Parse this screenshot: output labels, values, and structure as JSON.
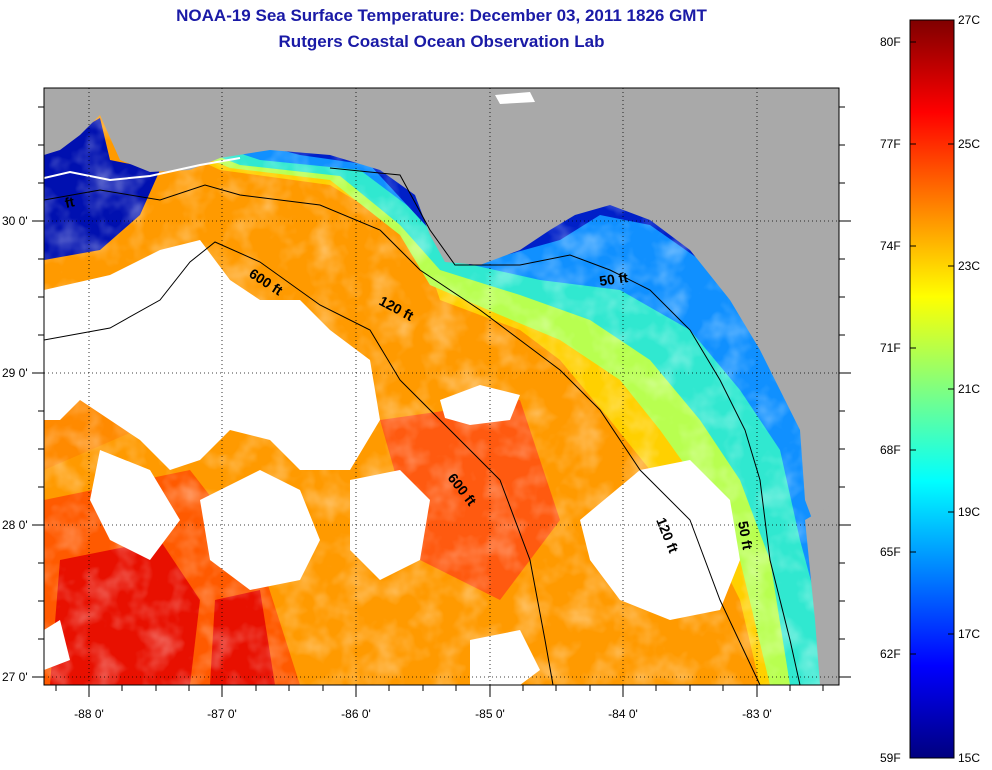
{
  "title": {
    "line1": "NOAA-19 Sea Surface Temperature:  December 03, 2011 1826 GMT",
    "line2": "Rutgers Coastal Ocean Observation Lab"
  },
  "colors": {
    "title": "#1a1aa6",
    "land": "#a9a9a9",
    "cloud": "#ffffff",
    "contour": "#000000"
  },
  "map": {
    "x_ticks": [
      "-88 0'",
      "-87 0'",
      "-86 0'",
      "-85 0'",
      "-84 0'",
      "-83 0'"
    ],
    "y_ticks": [
      "30 0'",
      "29 0'",
      "28 0'",
      "27 0'"
    ],
    "contour_labels": [
      {
        "text": "600 ft"
      },
      {
        "text": "120 ft"
      },
      {
        "text": "50 ft"
      },
      {
        "text": "600 ft"
      },
      {
        "text": "120 ft"
      },
      {
        "text": "50 ft"
      },
      {
        "text": "ft"
      }
    ]
  },
  "colorbar": {
    "fahrenheit_labels": [
      "80F",
      "77F",
      "74F",
      "71F",
      "68F",
      "65F",
      "62F",
      "59F"
    ],
    "celsius_labels": [
      "27C",
      "25C",
      "23C",
      "21C",
      "19C",
      "17C",
      "15C"
    ]
  }
}
